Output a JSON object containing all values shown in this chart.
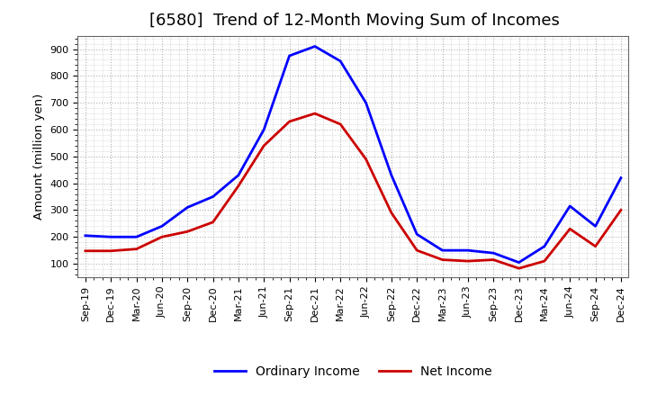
{
  "title": "[6580]  Trend of 12-Month Moving Sum of Incomes",
  "ylabel": "Amount (million yen)",
  "x_labels": [
    "Sep-19",
    "Dec-19",
    "Mar-20",
    "Jun-20",
    "Sep-20",
    "Dec-20",
    "Mar-21",
    "Jun-21",
    "Sep-21",
    "Dec-21",
    "Mar-22",
    "Jun-22",
    "Sep-22",
    "Dec-22",
    "Mar-23",
    "Jun-23",
    "Sep-23",
    "Dec-23",
    "Mar-24",
    "Jun-24",
    "Sep-24",
    "Dec-24"
  ],
  "ordinary_income": [
    205,
    200,
    200,
    240,
    310,
    350,
    430,
    600,
    875,
    910,
    855,
    700,
    430,
    210,
    150,
    150,
    140,
    105,
    165,
    315,
    240,
    420
  ],
  "net_income": [
    148,
    148,
    155,
    200,
    220,
    255,
    390,
    540,
    630,
    660,
    620,
    490,
    290,
    150,
    115,
    110,
    115,
    83,
    110,
    230,
    165,
    300
  ],
  "ordinary_color": "#0000ff",
  "net_color": "#cc0000",
  "ylim_min": 50,
  "ylim_max": 950,
  "yticks": [
    100,
    200,
    300,
    400,
    500,
    600,
    700,
    800,
    900
  ],
  "bg_color": "#ffffff",
  "grid_color": "#aaaaaa",
  "title_fontsize": 13,
  "label_fontsize": 9.5,
  "tick_fontsize": 8,
  "legend_fontsize": 10,
  "legend_labels": [
    "Ordinary Income",
    "Net Income"
  ]
}
